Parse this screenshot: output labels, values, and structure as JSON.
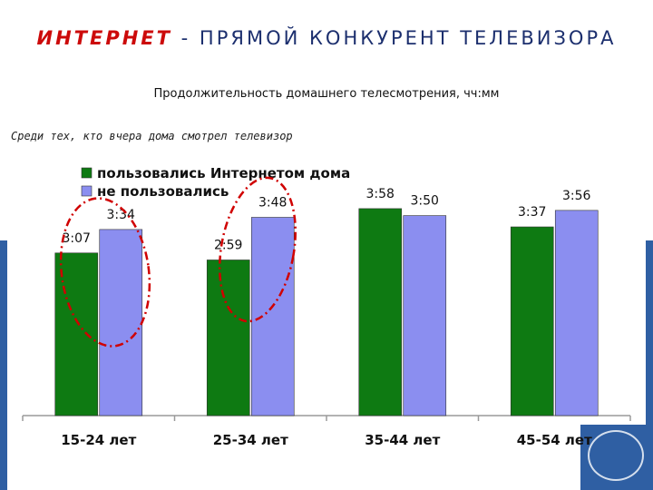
{
  "headline": {
    "part1": "Интернет",
    "part2": "- прямой конкурент",
    "part3": "телевизора"
  },
  "subtitle": "Продолжительность домашнего телесмотрения, чч:мм",
  "note": "Среди тех, кто вчера дома смотрел телевизор",
  "colors": {
    "series1": "#0e7a12",
    "series2": "#8b8ef0",
    "highlight": "#d00000",
    "headline_red": "#cc0a0a",
    "headline_blue": "#1c2f6e"
  },
  "chart_data": {
    "type": "bar",
    "title": "",
    "xlabel": "",
    "ylabel": "",
    "ylim": [
      0,
      4.5
    ],
    "categories": [
      "15-24 лет",
      "25-34 лет",
      "35-44 лет",
      "45-54 лет"
    ],
    "series": [
      {
        "name": "пользовались Интернетом дома",
        "values": [
          3.117,
          2.983,
          3.967,
          3.617
        ],
        "labels": [
          "3:07",
          "2:59",
          "3:58",
          "3:37"
        ],
        "color": "#0e7a12"
      },
      {
        "name": "не пользовались",
        "values": [
          3.567,
          3.8,
          3.833,
          3.933
        ],
        "labels": [
          "3:34",
          "3:48",
          "3:50",
          "3:56"
        ],
        "color": "#8b8ef0"
      }
    ],
    "legend": "top-left",
    "grid": false,
    "annotations": [
      "15-24 лет",
      "25-34 лет"
    ]
  }
}
